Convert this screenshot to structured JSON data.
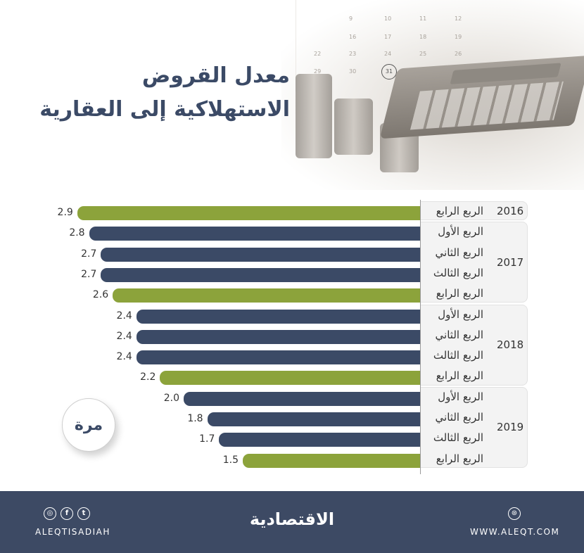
{
  "title": {
    "line1": "معدل القروض",
    "line2": "الاستهلاكية إلى العقارية"
  },
  "unit_badge": "مرة",
  "colors": {
    "dark_bar": "#3b4a66",
    "q4_bar": "#8ca33b",
    "footer_bg": "#3d4a64",
    "title": "#3b4a66"
  },
  "calendar": [
    "9",
    "10",
    "11",
    "12",
    "16",
    "17",
    "18",
    "19",
    "22",
    "23",
    "24",
    "25",
    "26",
    "29",
    "30",
    "31"
  ],
  "chart_data": {
    "type": "bar",
    "orientation": "horizontal",
    "title": "معدل القروض الاستهلاكية إلى العقارية",
    "unit": "مرة",
    "categories": [
      "2016 الربع الرابع",
      "2017 الربع الأول",
      "2017 الربع الثاني",
      "2017 الربع الثالث",
      "2017 الربع الرابع",
      "2018 الربع الأول",
      "2018 الربع الثاني",
      "2018 الربع الثالث",
      "2018 الربع الرابع",
      "2019 الربع الأول",
      "2019 الربع الثاني",
      "2019 الربع الثالث",
      "2019 الربع الرابع"
    ],
    "values": [
      2.9,
      2.8,
      2.7,
      2.7,
      2.6,
      2.4,
      2.4,
      2.4,
      2.2,
      2.0,
      1.8,
      1.7,
      1.5
    ],
    "value_labels": [
      "2.9",
      "2.8",
      "2.7",
      "2.7",
      "2.6",
      "2.4",
      "2.4",
      "2.4",
      "2.2",
      "2.0",
      "1.8",
      "1.7",
      "1.5"
    ],
    "highlight": "Q4 bars in green, others dark navy",
    "groups": [
      {
        "year": "2016",
        "quarters": [
          "الربع الرابع"
        ]
      },
      {
        "year": "2017",
        "quarters": [
          "الربع الأول",
          "الربع الثاني",
          "الربع الثالث",
          "الربع الرابع"
        ]
      },
      {
        "year": "2018",
        "quarters": [
          "الربع الأول",
          "الربع الثاني",
          "الربع الثالث",
          "الربع الرابع"
        ]
      },
      {
        "year": "2019",
        "quarters": [
          "الربع الأول",
          "الربع الثاني",
          "الربع الثالث",
          "الربع الرابع"
        ]
      }
    ]
  },
  "footer": {
    "social_icons": [
      "instagram-icon",
      "facebook-icon",
      "twitter-icon"
    ],
    "social_glyphs": [
      "◎",
      "f",
      "t"
    ],
    "handle": "ALEQTISADIAH",
    "logo": "الاقتصادية",
    "web_glyph": "⊛",
    "website": "WWW.ALEQT.COM"
  }
}
